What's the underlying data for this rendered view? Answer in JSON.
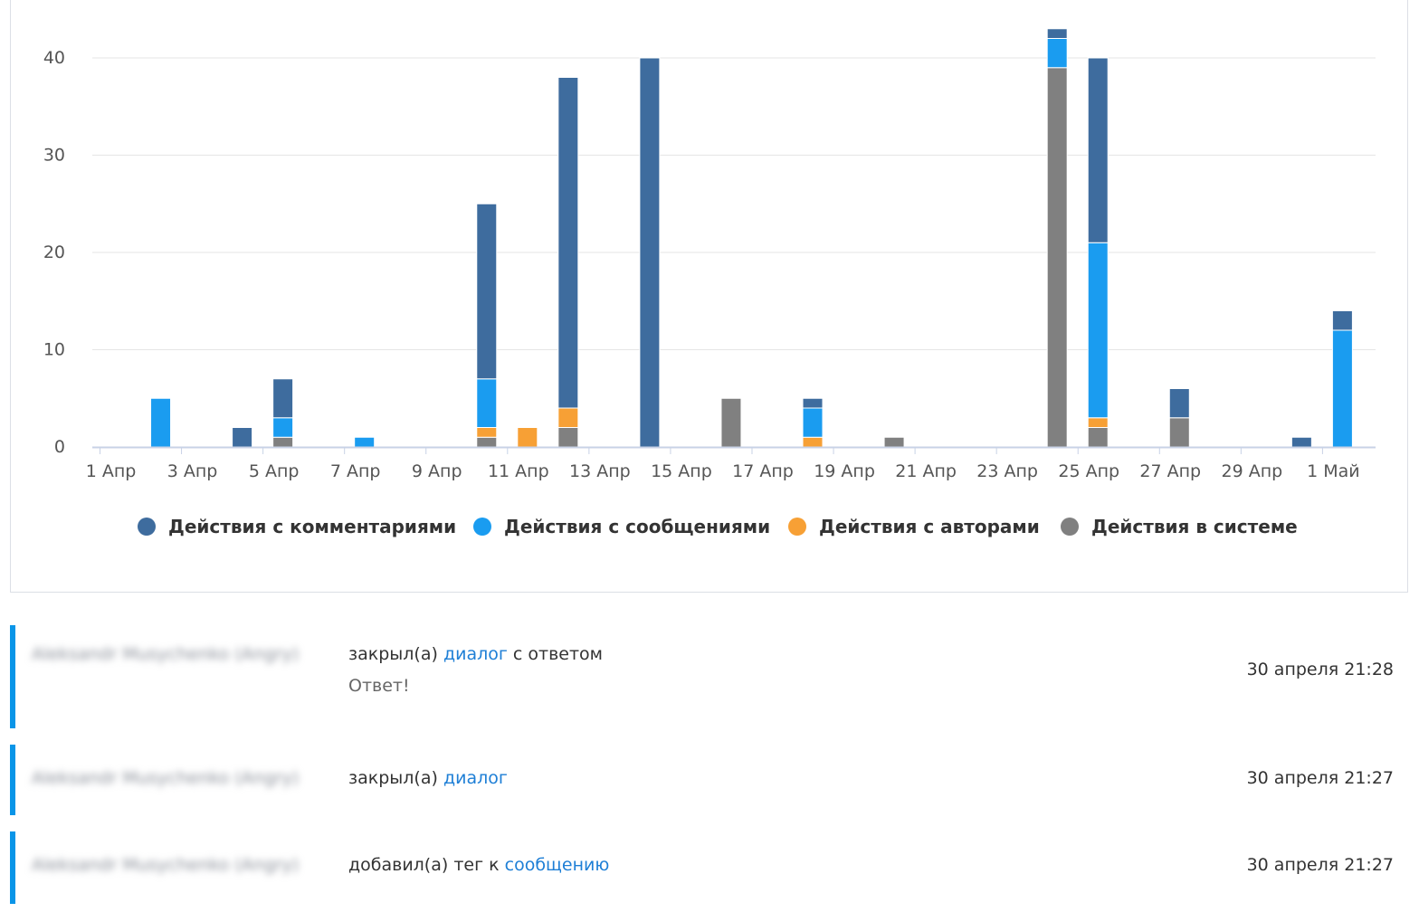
{
  "chart_data": {
    "type": "bar",
    "stacked": true,
    "x_ticks": [
      "1 Апр",
      "3 Апр",
      "5 Апр",
      "7 Апр",
      "9 Апр",
      "11 Апр",
      "13 Апр",
      "15 Апр",
      "17 Апр",
      "19 Апр",
      "21 Апр",
      "23 Апр",
      "25 Апр",
      "27 Апр",
      "29 Апр",
      "1 Май"
    ],
    "y_ticks": [
      "0",
      "10",
      "20",
      "30",
      "40"
    ],
    "ylim": [
      0,
      43
    ],
    "grid": true,
    "legend_position": "bottom",
    "categories": [
      "1 Апр",
      "2 Апр",
      "3 Апр",
      "4 Апр",
      "5 Апр",
      "6 Апр",
      "7 Апр",
      "8 Апр",
      "9 Апр",
      "10 Апр",
      "11 Апр",
      "12 Апр",
      "13 Апр",
      "14 Апр",
      "15 Апр",
      "16 Апр",
      "17 Апр",
      "18 Апр",
      "19 Апр",
      "20 Апр",
      "21 Апр",
      "22 Апр",
      "23 Апр",
      "24 Апр",
      "25 Апр",
      "26 Апр",
      "27 Апр",
      "28 Апр",
      "29 Апр",
      "30 Апр",
      "1 Май"
    ],
    "series": [
      {
        "name": "Действия в системе",
        "color": "#808080",
        "values": [
          0,
          0,
          0,
          0,
          1,
          0,
          0,
          0,
          0,
          1,
          0,
          2,
          0,
          0,
          0,
          5,
          0,
          0,
          0,
          1,
          0,
          0,
          0,
          39,
          2,
          0,
          3,
          0,
          0,
          0,
          0
        ]
      },
      {
        "name": "Действия с авторами",
        "color": "#f7a035",
        "values": [
          0,
          0,
          0,
          0,
          0,
          0,
          0,
          0,
          0,
          1,
          2,
          2,
          0,
          0,
          0,
          0,
          0,
          1,
          0,
          0,
          0,
          0,
          0,
          0,
          1,
          0,
          0,
          0,
          0,
          0,
          0
        ]
      },
      {
        "name": "Действия с сообщениями",
        "color": "#1a9cf0",
        "values": [
          0,
          5,
          0,
          0,
          2,
          0,
          1,
          0,
          0,
          5,
          0,
          0,
          0,
          0,
          0,
          0,
          0,
          3,
          0,
          0,
          0,
          0,
          0,
          3,
          18,
          0,
          0,
          0,
          0,
          0,
          12
        ]
      },
      {
        "name": "Действия с комментариями",
        "color": "#3e6c9e",
        "values": [
          0,
          0,
          0,
          2,
          4,
          0,
          0,
          0,
          0,
          18,
          0,
          34,
          0,
          40,
          0,
          0,
          0,
          1,
          0,
          0,
          0,
          0,
          0,
          1,
          19,
          0,
          3,
          0,
          0,
          1,
          2
        ]
      }
    ],
    "legend": [
      "Действия с комментариями",
      "Действия с сообщениями",
      "Действия с авторами",
      "Действия в системе"
    ]
  },
  "feed": [
    {
      "user": "Aleksandr Musychenko (Angry)",
      "action": "закрыл(а)",
      "link": "диалог",
      "after": "с ответом",
      "detail": "Ответ!",
      "time": "30 апреля 21:28"
    },
    {
      "user": "Aleksandr Musychenko (Angry)",
      "action": "закрыл(а)",
      "link": "диалог",
      "after": "",
      "detail": "",
      "time": "30 апреля 21:27"
    },
    {
      "user": "Aleksandr Musychenko (Angry)",
      "action": "добавил(а) тег к",
      "link": "сообщению",
      "after": "",
      "detail": "",
      "time": "30 апреля 21:27"
    }
  ]
}
